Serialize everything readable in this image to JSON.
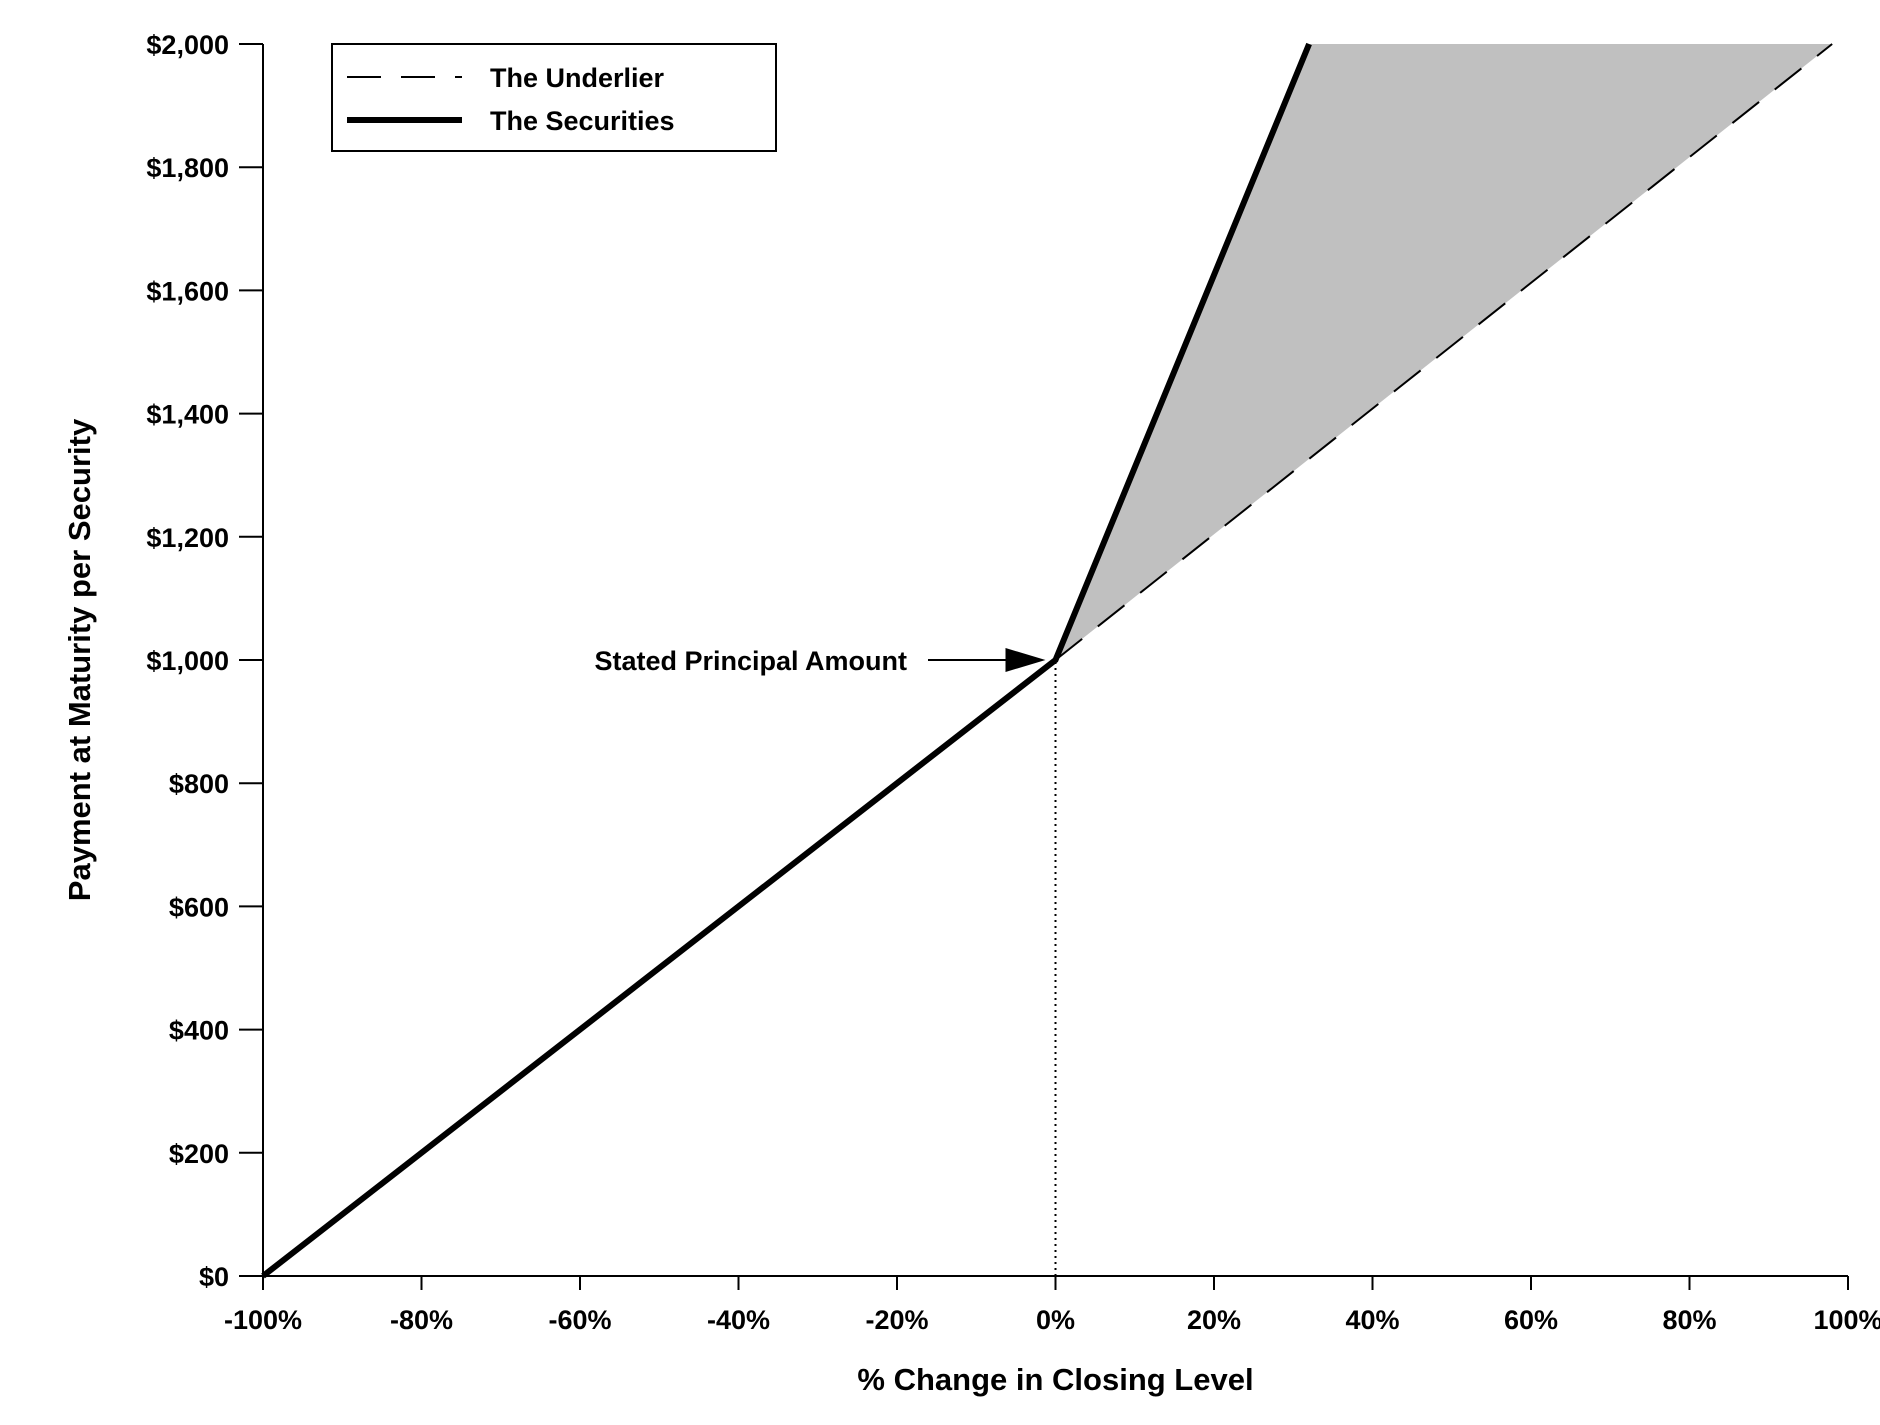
{
  "chart_data": {
    "type": "line",
    "title": "",
    "xlabel": "% Change in Closing Level",
    "ylabel": "Payment at Maturity per Security",
    "xlim": [
      -100,
      100
    ],
    "ylim": [
      0,
      2000
    ],
    "x_ticks": [
      -100,
      -80,
      -60,
      -40,
      -20,
      0,
      20,
      40,
      60,
      80,
      100
    ],
    "x_tick_labels": [
      "-100%",
      "-80%",
      "-60%",
      "-40%",
      "-20%",
      "0%",
      "20%",
      "40%",
      "60%",
      "80%",
      "100%"
    ],
    "y_ticks": [
      0,
      200,
      400,
      600,
      800,
      1000,
      1200,
      1400,
      1600,
      1800,
      2000
    ],
    "y_tick_labels": [
      "$0",
      "$200",
      "$400",
      "$600",
      "$800",
      "$1,000",
      "$1,200",
      "$1,400",
      "$1,600",
      "$1,800",
      "$2,000"
    ],
    "grid": false,
    "legend_position": "top-left",
    "series": [
      {
        "name": "The Underlier",
        "style": "dashed",
        "color": "#000000",
        "x": [
          0,
          98
        ],
        "y": [
          1000,
          2000
        ]
      },
      {
        "name": "The Securities",
        "style": "solid-thick",
        "color": "#000000",
        "x": [
          -100,
          0,
          32
        ],
        "y": [
          0,
          1000,
          2000
        ]
      }
    ],
    "shaded_region": {
      "color": "#c0c0c0",
      "x": [
        0,
        32,
        98
      ],
      "y": [
        1000,
        2000,
        2000
      ]
    },
    "reference_line": {
      "x": 0,
      "y_from": 0,
      "y_to": 1000,
      "style": "dotted"
    },
    "annotations": [
      {
        "text": "Stated Principal Amount",
        "x": 0,
        "y": 1000,
        "arrow": true
      }
    ]
  }
}
